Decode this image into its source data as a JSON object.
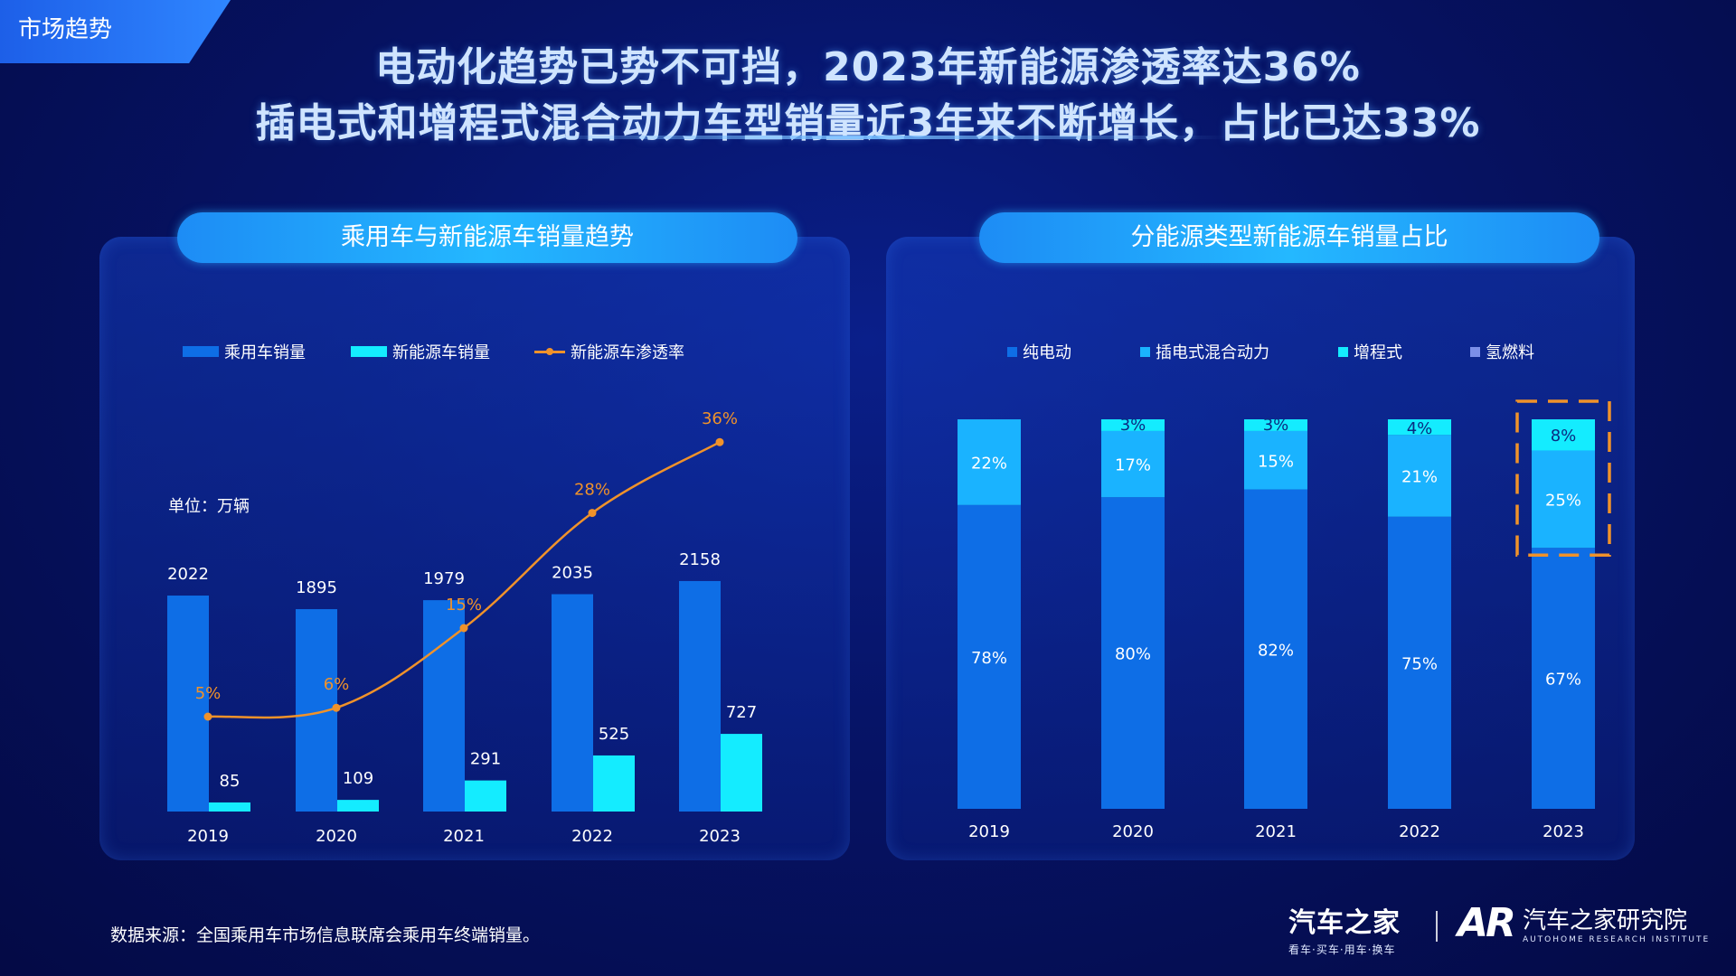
{
  "section_tag": "市场趋势",
  "headline": {
    "line1": "电动化趋势已势不可挡，2023年新能源渗透率达36%",
    "line2": "插电式和增程式混合动力车型销量近3年来不断增长，占比已达33%"
  },
  "left_panel": {
    "title": "乘用车与新能源车销量趋势",
    "unit": "单位：万辆"
  },
  "right_panel": {
    "title": "分能源类型新能源车销量占比"
  },
  "legend_left": [
    "乘用车销量",
    "新能源车销量",
    "新能源车渗透率"
  ],
  "legend_right": [
    "纯电动",
    "插电式混合动力",
    "增程式",
    "氢燃料"
  ],
  "colors": {
    "passenger": "#0e6ee6",
    "nev": "#14ecff",
    "penetration": "#f0922a",
    "bev": "#0e6ee6",
    "phev": "#1ab3ff",
    "erev": "#14ecff",
    "fcev": "#7b8fe8",
    "highlight": "#f0922a"
  },
  "chart_data": [
    {
      "type": "bar",
      "categories": [
        "2019",
        "2020",
        "2021",
        "2022",
        "2023"
      ],
      "series": [
        {
          "name": "乘用车销量",
          "values": [
            2022,
            1895,
            1979,
            2035,
            2158
          ]
        },
        {
          "name": "新能源车销量",
          "values": [
            85,
            109,
            291,
            525,
            727
          ]
        },
        {
          "name": "新能源车渗透率",
          "type": "line",
          "values": [
            5,
            6,
            15,
            28,
            36
          ],
          "labels": [
            "5%",
            "6%",
            "15%",
            "28%",
            "36%"
          ]
        }
      ],
      "title": "乘用车与新能源车销量趋势",
      "ylabel": "单位：万辆",
      "legend": "top",
      "grid": false
    },
    {
      "type": "bar",
      "stacked": true,
      "categories": [
        "2019",
        "2020",
        "2021",
        "2022",
        "2023"
      ],
      "series": [
        {
          "name": "纯电动",
          "values": [
            78,
            80,
            82,
            75,
            67
          ],
          "labels": [
            "78%",
            "80%",
            "82%",
            "75%",
            "67%"
          ]
        },
        {
          "name": "插电式混合动力",
          "values": [
            22,
            17,
            15,
            21,
            25
          ],
          "labels": [
            "22%",
            "17%",
            "15%",
            "21%",
            "25%"
          ]
        },
        {
          "name": "增程式",
          "values": [
            0,
            3,
            3,
            4,
            8
          ],
          "labels": [
            "",
            "3%",
            "3%",
            "4%",
            "8%"
          ]
        },
        {
          "name": "氢燃料",
          "values": [
            0,
            0,
            0,
            0,
            0
          ],
          "labels": [
            "",
            "",
            "",
            "",
            ""
          ]
        }
      ],
      "title": "分能源类型新能源车销量占比",
      "ylim": [
        0,
        100
      ],
      "legend": "top",
      "grid": false,
      "highlight_category": "2023"
    }
  ],
  "source": "数据来源：全国乘用车市场信息联席会乘用车终端销量。",
  "logos": {
    "autohome": "汽车之家",
    "autohome_sub": "看车·买车·用车·换车",
    "ari_mark": "AR",
    "ari_name": "汽车之家研究院",
    "ari_sub": "AUTOHOME RESEARCH INSTITUTE"
  }
}
